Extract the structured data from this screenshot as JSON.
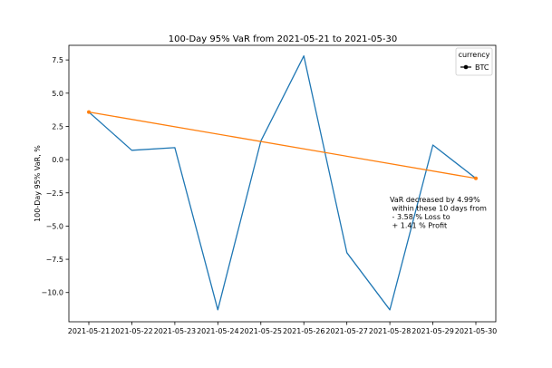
{
  "chart_data": {
    "type": "line",
    "title": "100-Day 95% VaR from 2021-05-21 to 2021-05-30",
    "xlabel": "",
    "ylabel": "100-Day 95% VaR, %",
    "categories": [
      "2021-05-21",
      "2021-05-22",
      "2021-05-23",
      "2021-05-24",
      "2021-05-25",
      "2021-05-26",
      "2021-05-27",
      "2021-05-28",
      "2021-05-29",
      "2021-05-30"
    ],
    "ylim": [
      -12.2,
      8.6
    ],
    "yticks": [
      7.5,
      5.0,
      2.5,
      0.0,
      -2.5,
      -5.0,
      -7.5,
      -10.0
    ],
    "ytick_labels": [
      "7.5",
      "5.0",
      "2.5",
      "0.0",
      "−2.5",
      "−5.0",
      "−7.5",
      "−10.0"
    ],
    "series": [
      {
        "name": "BTC",
        "color": "#1f77b4",
        "values": [
          3.58,
          0.7,
          0.9,
          -11.3,
          1.4,
          7.8,
          -7.0,
          -11.3,
          1.1,
          -1.41
        ]
      }
    ],
    "trend": {
      "color": "#ff7f0e",
      "from": 3.58,
      "to": -1.41
    },
    "grid": false,
    "legend": {
      "placement": "top-right",
      "title": "currency",
      "entries": [
        "BTC"
      ]
    },
    "annotation": {
      "lines": [
        "VaR decreased by 4.99%",
        " within these 10 days from",
        " - 3.58 % Loss to",
        " + 1.41 % Profit"
      ]
    }
  }
}
